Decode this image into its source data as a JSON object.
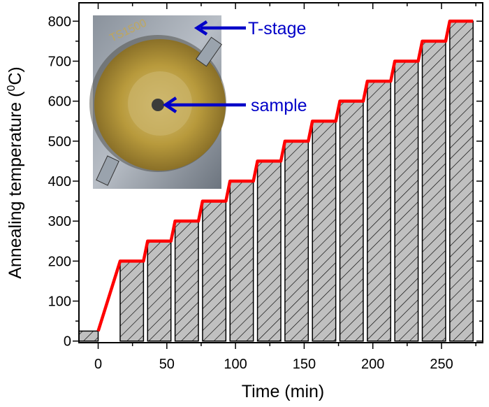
{
  "chart_data": {
    "type": "bar",
    "xlabel": "Time (min)",
    "ylabel": {
      "prefix": "Annealing temperature (",
      "superscript": "0",
      "suffix": "C)"
    },
    "xlim": [
      -14,
      280
    ],
    "ylim": [
      -4,
      846
    ],
    "xticks": [
      0,
      50,
      100,
      150,
      200,
      250
    ],
    "yticks": [
      0,
      100,
      200,
      300,
      400,
      500,
      600,
      700,
      800
    ],
    "grid": false,
    "bars": [
      {
        "start": -14,
        "end": 0,
        "value": 25
      },
      {
        "start": 16,
        "end": 33,
        "value": 200
      },
      {
        "start": 36,
        "end": 53,
        "value": 250
      },
      {
        "start": 56,
        "end": 73,
        "value": 300
      },
      {
        "start": 76,
        "end": 93,
        "value": 350
      },
      {
        "start": 96,
        "end": 113,
        "value": 400
      },
      {
        "start": 116,
        "end": 133,
        "value": 450
      },
      {
        "start": 136,
        "end": 153,
        "value": 500
      },
      {
        "start": 156,
        "end": 173,
        "value": 550
      },
      {
        "start": 176,
        "end": 193,
        "value": 600
      },
      {
        "start": 196,
        "end": 213,
        "value": 650
      },
      {
        "start": 216,
        "end": 233,
        "value": 700
      },
      {
        "start": 236,
        "end": 253,
        "value": 750
      },
      {
        "start": 256,
        "end": 273,
        "value": 800
      }
    ],
    "line": {
      "color": "#ff0000",
      "x": [
        0,
        16,
        33,
        36,
        53,
        56,
        73,
        76,
        93,
        96,
        113,
        116,
        133,
        136,
        153,
        156,
        173,
        176,
        193,
        196,
        213,
        216,
        233,
        236,
        253,
        256,
        273
      ],
      "y": [
        25,
        200,
        200,
        250,
        250,
        300,
        300,
        350,
        350,
        400,
        400,
        450,
        450,
        500,
        500,
        550,
        550,
        600,
        600,
        650,
        650,
        700,
        700,
        750,
        750,
        800,
        800
      ]
    },
    "bar_fill": "#c0c0c0",
    "bar_hatch": "diagonal"
  },
  "inset": {
    "photo_lettering": "TS1500",
    "label_color": "#0000c8",
    "annotations": [
      {
        "label": "T-stage"
      },
      {
        "label": "sample"
      }
    ]
  }
}
